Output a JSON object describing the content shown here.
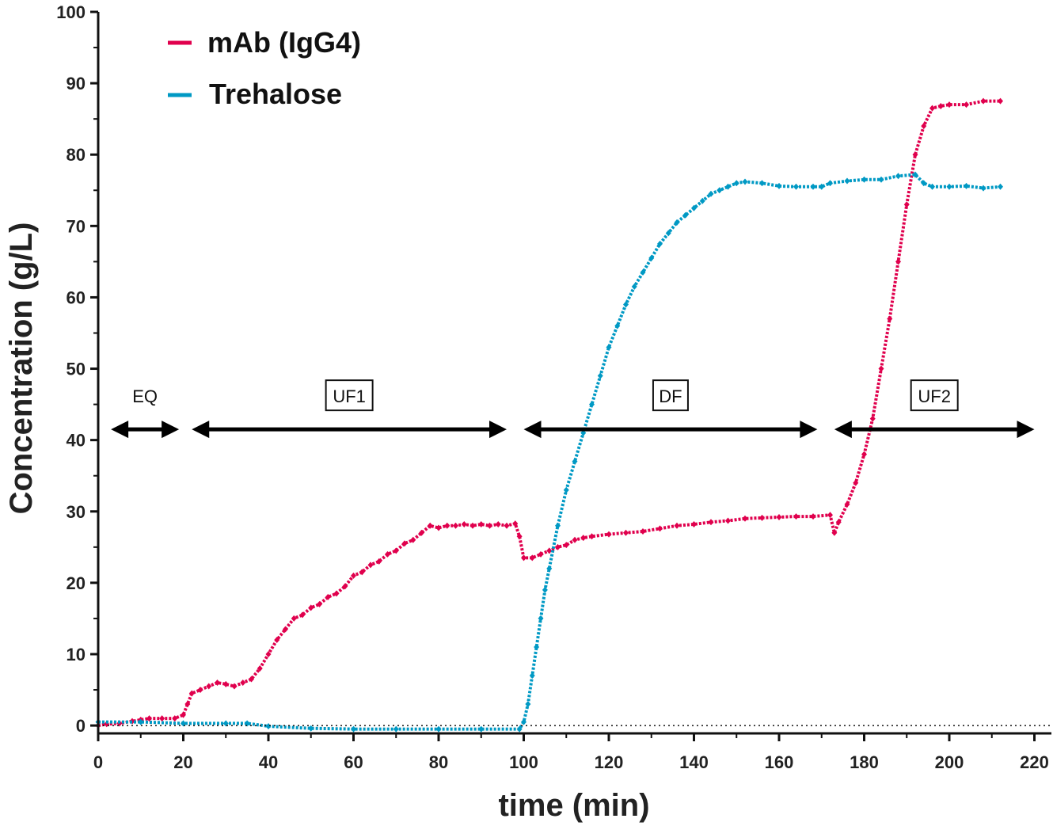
{
  "chart_data": {
    "type": "scatter",
    "xlabel": "time (min)",
    "ylabel": "Concentration (g/L)",
    "xlim": [
      0,
      224
    ],
    "ylim": [
      -1.1,
      100
    ],
    "xticks": [
      0,
      20,
      40,
      60,
      80,
      100,
      120,
      140,
      160,
      180,
      200,
      220
    ],
    "yticks": [
      0,
      10,
      20,
      30,
      40,
      50,
      60,
      70,
      80,
      90,
      100
    ],
    "grid": false,
    "legend_position": "top-left",
    "reference_line_y": 0,
    "series": [
      {
        "name": "mAb (IgG4)",
        "color": "#e0004d",
        "points": [
          [
            0,
            0
          ],
          [
            2,
            0.2
          ],
          [
            5,
            0.3
          ],
          [
            8,
            0.6
          ],
          [
            10,
            0.8
          ],
          [
            12,
            1
          ],
          [
            15,
            1
          ],
          [
            18,
            1
          ],
          [
            20,
            1.5
          ],
          [
            21,
            3
          ],
          [
            22,
            4.5
          ],
          [
            24,
            5
          ],
          [
            26,
            5.5
          ],
          [
            28,
            6
          ],
          [
            30,
            5.8
          ],
          [
            32,
            5.5
          ],
          [
            34,
            6
          ],
          [
            36,
            6.5
          ],
          [
            38,
            8
          ],
          [
            40,
            10
          ],
          [
            42,
            12
          ],
          [
            44,
            13.5
          ],
          [
            46,
            15
          ],
          [
            48,
            15.5
          ],
          [
            50,
            16.5
          ],
          [
            52,
            17
          ],
          [
            54,
            18
          ],
          [
            56,
            18.5
          ],
          [
            58,
            19.5
          ],
          [
            60,
            21
          ],
          [
            62,
            21.5
          ],
          [
            64,
            22.5
          ],
          [
            66,
            23
          ],
          [
            68,
            24
          ],
          [
            70,
            24.5
          ],
          [
            72,
            25.5
          ],
          [
            74,
            26
          ],
          [
            76,
            27
          ],
          [
            78,
            28
          ],
          [
            80,
            27.7
          ],
          [
            82,
            28
          ],
          [
            84,
            28
          ],
          [
            86,
            28.2
          ],
          [
            88,
            28
          ],
          [
            90,
            28.2
          ],
          [
            92,
            28
          ],
          [
            94,
            28.2
          ],
          [
            96,
            28
          ],
          [
            98,
            28.3
          ],
          [
            99,
            26.5
          ],
          [
            100,
            23.5
          ],
          [
            102,
            23.5
          ],
          [
            104,
            24
          ],
          [
            106,
            24.5
          ],
          [
            108,
            25
          ],
          [
            110,
            25.3
          ],
          [
            112,
            26
          ],
          [
            114,
            26.3
          ],
          [
            116,
            26.5
          ],
          [
            120,
            26.8
          ],
          [
            124,
            27
          ],
          [
            128,
            27.2
          ],
          [
            132,
            27.6
          ],
          [
            136,
            28
          ],
          [
            140,
            28.2
          ],
          [
            144,
            28.5
          ],
          [
            148,
            28.7
          ],
          [
            152,
            29
          ],
          [
            156,
            29.1
          ],
          [
            160,
            29.2
          ],
          [
            164,
            29.3
          ],
          [
            168,
            29.3
          ],
          [
            172,
            29.5
          ],
          [
            173,
            27
          ],
          [
            174,
            28.5
          ],
          [
            176,
            31
          ],
          [
            178,
            34
          ],
          [
            180,
            38
          ],
          [
            182,
            43
          ],
          [
            184,
            50
          ],
          [
            186,
            57
          ],
          [
            188,
            65
          ],
          [
            190,
            73
          ],
          [
            192,
            80
          ],
          [
            194,
            84
          ],
          [
            196,
            86.5
          ],
          [
            198,
            86.8
          ],
          [
            200,
            87
          ],
          [
            204,
            87
          ],
          [
            208,
            87.5
          ],
          [
            212,
            87.5
          ]
        ]
      },
      {
        "name": "Trehalose",
        "color": "#0099c4",
        "points": [
          [
            0,
            0.5
          ],
          [
            10,
            0.5
          ],
          [
            20,
            0.3
          ],
          [
            30,
            0.3
          ],
          [
            35,
            0.3
          ],
          [
            40,
            -0.1
          ],
          [
            50,
            -0.4
          ],
          [
            60,
            -0.5
          ],
          [
            70,
            -0.5
          ],
          [
            80,
            -0.5
          ],
          [
            90,
            -0.5
          ],
          [
            99,
            -0.5
          ],
          [
            100,
            0.5
          ],
          [
            101,
            3
          ],
          [
            102,
            7
          ],
          [
            103,
            11
          ],
          [
            104,
            15
          ],
          [
            105,
            19
          ],
          [
            106,
            22
          ],
          [
            108,
            28
          ],
          [
            110,
            33
          ],
          [
            112,
            37
          ],
          [
            114,
            41
          ],
          [
            116,
            45
          ],
          [
            118,
            49
          ],
          [
            120,
            53
          ],
          [
            122,
            56
          ],
          [
            124,
            59
          ],
          [
            126,
            61.5
          ],
          [
            128,
            63.5
          ],
          [
            130,
            65.5
          ],
          [
            132,
            67.5
          ],
          [
            134,
            69
          ],
          [
            136,
            70.5
          ],
          [
            138,
            71.5
          ],
          [
            140,
            72.5
          ],
          [
            142,
            73.5
          ],
          [
            144,
            74.5
          ],
          [
            146,
            75
          ],
          [
            148,
            75.5
          ],
          [
            150,
            76
          ],
          [
            152,
            76.2
          ],
          [
            156,
            76
          ],
          [
            160,
            75.6
          ],
          [
            164,
            75.5
          ],
          [
            168,
            75.5
          ],
          [
            170,
            75.5
          ],
          [
            172,
            76
          ],
          [
            176,
            76.3
          ],
          [
            180,
            76.5
          ],
          [
            184,
            76.5
          ],
          [
            188,
            77
          ],
          [
            192,
            77.2
          ],
          [
            194,
            76
          ],
          [
            196,
            75.5
          ],
          [
            200,
            75.5
          ],
          [
            204,
            75.6
          ],
          [
            208,
            75.3
          ],
          [
            212,
            75.5
          ]
        ]
      }
    ],
    "annotations": [
      {
        "label": "EQ",
        "boxed": false,
        "x_start": 3,
        "x_end": 19,
        "y": 41.5
      },
      {
        "label": "UF1",
        "boxed": true,
        "x_start": 22,
        "x_end": 96,
        "y": 41.5
      },
      {
        "label": "DF",
        "boxed": true,
        "x_start": 100,
        "x_end": 169,
        "y": 41.5
      },
      {
        "label": "UF2",
        "boxed": true,
        "x_start": 173,
        "x_end": 220,
        "y": 41.5
      }
    ]
  }
}
